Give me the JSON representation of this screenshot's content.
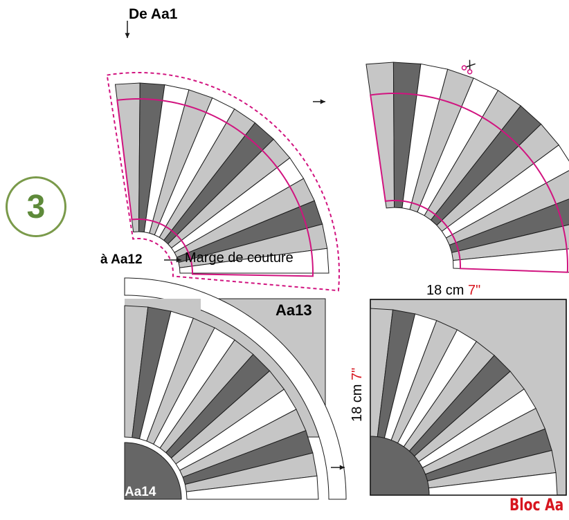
{
  "step_number": "3",
  "labels": {
    "from": "De Aa1",
    "to": "à Aa12",
    "seam": "Marge de couture",
    "piece_13": "Aa13",
    "piece_14": "Aa14",
    "dim_top_cm": "18 cm",
    "dim_top_in": "7\"",
    "dim_side_cm": "18 cm",
    "dim_side_in": "7\"",
    "block_name": "Bloc Aa"
  },
  "colors": {
    "light": "#c6c6c6",
    "dark": "#666666",
    "white": "#ffffff",
    "outline": "#1a1a1a",
    "seam": "#d1137f",
    "accent_red": "#d7151e",
    "step_green": "#5e8a3a"
  },
  "strip_pattern": [
    "light",
    "dark",
    "white",
    "light",
    "white",
    "light",
    "dark",
    "light",
    "white",
    "light",
    "dark",
    "light",
    "white"
  ],
  "icons": {
    "arrow": "arrow-right-icon",
    "scissors": "scissors-icon"
  }
}
